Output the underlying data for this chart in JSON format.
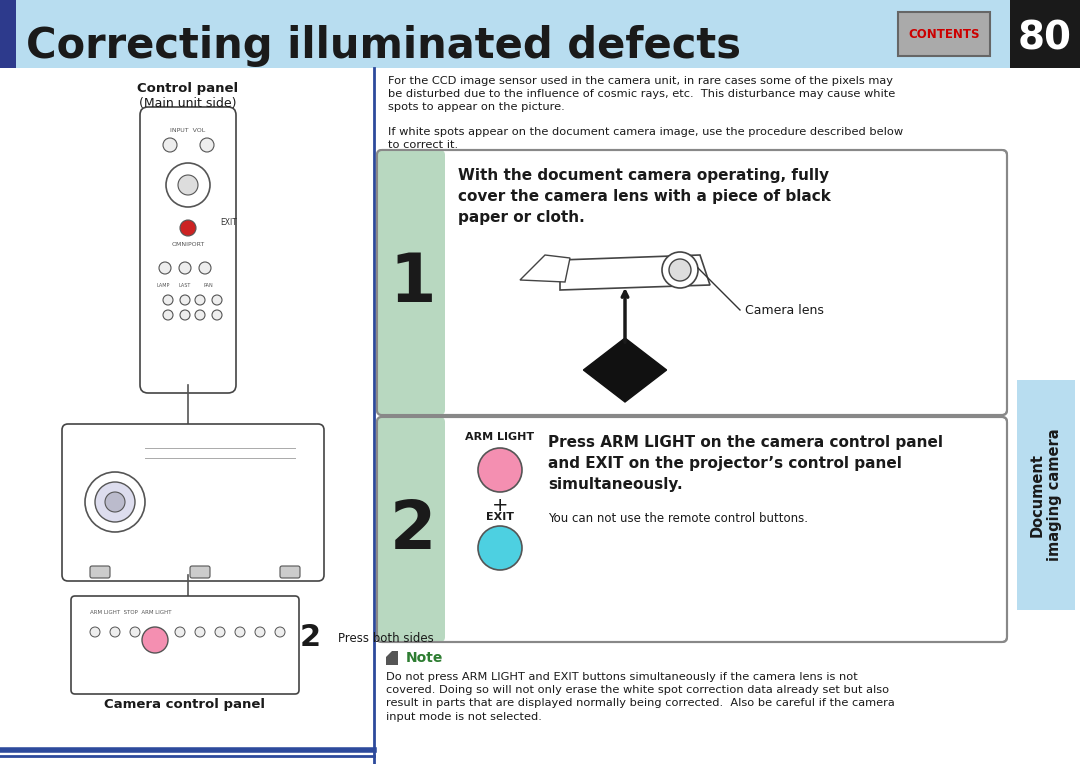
{
  "title": "Correcting illuminated defects",
  "page_number": "80",
  "title_bg_color": "#b8ddf0",
  "title_text_color": "#1a1a1a",
  "header_bar_color": "#2d3a8c",
  "page_num_bg": "#1a1a1a",
  "contents_bg": "#aaaaaa",
  "contents_text": "CONTENTS",
  "bg_color": "#ffffff",
  "sidebar_bg": "#b8ddf0",
  "sidebar_text": "Document\nimaging camera",
  "intro_text1": "For the CCD image sensor used in the camera unit, in rare cases some of the pixels may\nbe disturbed due to the influence of cosmic rays, etc.  This disturbance may cause white\nspots to appear on the picture.",
  "intro_text2": "If white spots appear on the document camera image, use the procedure described below\nto correct it.",
  "step1_num": "1",
  "step1_text": "With the document camera operating, fully\ncover the camera lens with a piece of black\npaper or cloth.",
  "step1_bg": "#b8d8c0",
  "step2_num": "2",
  "step2_text": "Press ARM LIGHT on the camera control panel\nand EXIT on the projector’s control panel\nsimultaneously.",
  "step2_sub": "You can not use the remote control buttons.",
  "step2_bg": "#b8d8c0",
  "arm_light_color": "#f48fb1",
  "exit_color": "#4dd0e1",
  "camera_lens_label": "Camera lens",
  "note_color": "#2e7d32",
  "note_title": "Note",
  "note_text": "Do not press ARM LIGHT and EXIT buttons simultaneously if the camera lens is not\ncovered. Doing so will not only erase the white spot correction data already set but also\nresult in parts that are displayed normally being corrected.  Also be careful if the camera\ninput mode is not selected.",
  "left_panel_label1": "Control panel",
  "left_panel_label2": "(Main unit side)",
  "left_panel_label3": "Camera control panel",
  "press_both": "Press both sides",
  "blue_line_color": "#2d4a9c",
  "divider_color": "#2d4a9c"
}
